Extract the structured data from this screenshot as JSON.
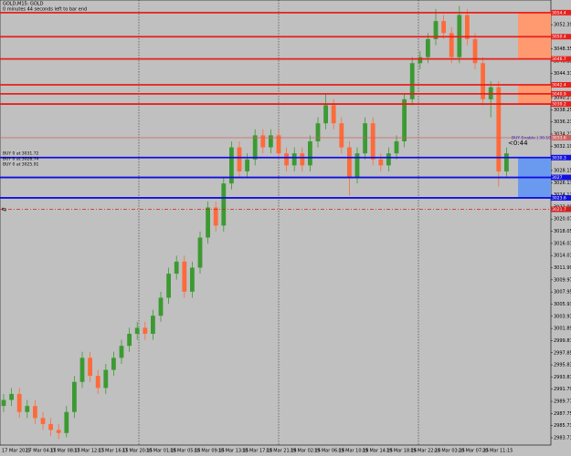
{
  "chart_data": {
    "type": "candlestick",
    "title": "GOLD,M15: GOLD",
    "subtitle": "0 minutes 44 seconds left to bar end",
    "open": [
      2989,
      2990,
      2991,
      2988,
      2989,
      2987,
      2986,
      2985,
      2984.5,
      2988,
      2993,
      2997,
      2994,
      2992,
      2995,
      2997,
      2999,
      3001,
      3002,
      3001,
      3004,
      3007,
      3011,
      3013,
      3008,
      3012,
      3017,
      3022,
      3019,
      3026,
      3032,
      3028,
      3030,
      3034,
      3032,
      3034,
      3031,
      3029,
      3031,
      3029,
      3033,
      3036,
      3039,
      3036,
      3032,
      3027,
      3031,
      3036,
      3030,
      3029,
      3031,
      3033,
      3040,
      3046,
      3047,
      3050,
      3053,
      3051,
      3047,
      3054,
      3050,
      3046,
      3040,
      3042,
      3028
    ],
    "high": [
      2991,
      2992,
      2992,
      2990,
      2990,
      2988,
      2987,
      2986,
      2989,
      2994,
      2998,
      2998,
      2995,
      2996,
      2998,
      3000,
      3002,
      3003,
      3003,
      3005,
      3008,
      3012,
      3014,
      3014,
      3013,
      3018,
      3023,
      3023,
      3027,
      3033,
      3033,
      3031,
      3035,
      3035,
      3035,
      3035,
      3032,
      3032,
      3032,
      3034,
      3037,
      3041,
      3040,
      3037,
      3033,
      3032,
      3037,
      3037,
      3031,
      3032,
      3034,
      3041,
      3047,
      3048,
      3051,
      3055,
      3054,
      3052,
      3055.5,
      3055,
      3051,
      3047,
      3043,
      3043,
      3032
    ],
    "low": [
      2988,
      2989,
      2987,
      2987,
      2986,
      2985,
      2984,
      2983.5,
      2983.8,
      2987,
      2992,
      2993,
      2991,
      2991,
      2994,
      2996,
      2998,
      3000,
      3000,
      3000,
      3003,
      3006,
      3010,
      3007,
      3007,
      3011,
      3016,
      3018,
      3018,
      3025,
      3027,
      3027,
      3029,
      3031,
      3031,
      3030,
      3028,
      3028,
      3028,
      3028,
      3032,
      3035,
      3035,
      3031,
      3024,
      3026,
      3030,
      3029,
      3028,
      3028,
      3030,
      3032,
      3039,
      3045,
      3046,
      3049,
      3050,
      3046,
      3046,
      3049,
      3045,
      3039,
      3037,
      3025.5,
      3027
    ],
    "close": [
      2990,
      2991,
      2988,
      2989,
      2987,
      2986,
      2985,
      2984.5,
      2988,
      2993,
      2997,
      2994,
      2992,
      2995,
      2997,
      2999,
      3001,
      3002,
      3001,
      3004,
      3007,
      3011,
      3013,
      3008,
      3012,
      3017,
      3022,
      3019,
      3026,
      3032,
      3028,
      3030,
      3034,
      3032,
      3034,
      3031,
      3029,
      3031,
      3029,
      3033,
      3036,
      3039,
      3036,
      3032,
      3027,
      3031,
      3036,
      3030,
      3029,
      3031,
      3033,
      3040,
      3046,
      3047,
      3050,
      3053,
      3051,
      3047,
      3054,
      3050,
      3046,
      3040,
      3042,
      3028,
      3031
    ],
    "up_color": "#3c9a32",
    "down_color": "#ff6a3a",
    "ylim": [
      2982.5,
      3056.5
    ],
    "yticks": [
      2983.71,
      2985.73,
      2987.75,
      2989.77,
      2991.79,
      2993.81,
      2995.83,
      2997.85,
      2999.87,
      3001.89,
      3003.91,
      3005.93,
      3007.95,
      3009.97,
      3011.99,
      3014.01,
      3016.03,
      3018.05,
      3020.07,
      3022.09,
      3024.11,
      3026.13,
      3028.15,
      3030.17,
      3032.19,
      3034.21,
      3036.23,
      3038.25,
      3040.27,
      3042.29,
      3044.31,
      3046.33,
      3048.35,
      3050.37,
      3052.39,
      3054.41
    ],
    "xtick_labels": [
      "17 Mar 2025",
      "17 Mar 04:15",
      "17 Mar 08:15",
      "17 Mar 12:15",
      "17 Mar 16:15",
      "17 Mar 20:15",
      "18 Mar 01:15",
      "18 Mar 05:15",
      "18 Mar 09:15",
      "18 Mar 13:15",
      "18 Mar 17:15",
      "18 Mar 21:15",
      "19 Mar 02:15",
      "19 Mar 06:15",
      "19 Mar 10:15",
      "19 Mar 14:15",
      "19 Mar 18:15",
      "19 Mar 22:15",
      "20 Mar 03:15",
      "20 Mar 07:15",
      "20 Mar 11:15"
    ],
    "levels": [
      {
        "value": 3054.4,
        "color": "#e8201c",
        "style": "solid"
      },
      {
        "value": 3050.4,
        "color": "#e8201c",
        "style": "solid"
      },
      {
        "value": 3046.7,
        "color": "#e8201c",
        "style": "solid"
      },
      {
        "value": 3042.4,
        "color": "#e8201c",
        "style": "solid"
      },
      {
        "value": 3040.9,
        "color": "#e8201c",
        "style": "solid"
      },
      {
        "value": 3039.2,
        "color": "#e8201c",
        "style": "solid"
      },
      {
        "value": 3033.6,
        "color": "#d06060",
        "style": "thin"
      },
      {
        "value": 3030.3,
        "color": "#1010e0",
        "style": "solid"
      },
      {
        "value": 3027,
        "color": "#1010e0",
        "style": "solid"
      },
      {
        "value": 3023.6,
        "color": "#1010e0",
        "style": "solid"
      },
      {
        "value": 3021.7,
        "color": "#d02020",
        "style": "dashdot"
      }
    ],
    "zones": [
      {
        "from": 3046.7,
        "to": 3054.4,
        "color": "#ff9a70"
      },
      {
        "from": 3039.2,
        "to": 3042.4,
        "color": "#ff9a70"
      },
      {
        "from": 3023.6,
        "to": 3030.3,
        "color": "#6a9af0"
      }
    ],
    "annotations": [
      "BUY 0 at 3031.72",
      "BUY 0 at 3028.74",
      "BUY 0 at 3025.91"
    ],
    "countdown": "<0:44",
    "order_label": "BUY Enable | 30.1004"
  }
}
